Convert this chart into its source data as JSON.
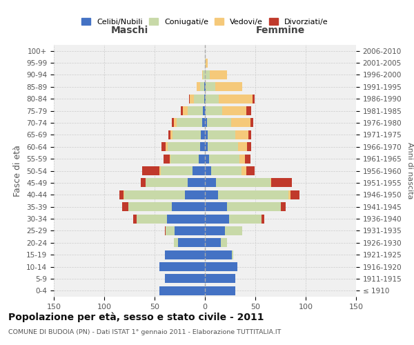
{
  "age_groups": [
    "100+",
    "95-99",
    "90-94",
    "85-89",
    "80-84",
    "75-79",
    "70-74",
    "65-69",
    "60-64",
    "55-59",
    "50-54",
    "45-49",
    "40-44",
    "35-39",
    "30-34",
    "25-29",
    "20-24",
    "15-19",
    "10-14",
    "5-9",
    "0-4"
  ],
  "birth_years": [
    "≤ 1910",
    "1911-1915",
    "1916-1920",
    "1921-1925",
    "1926-1930",
    "1931-1935",
    "1936-1940",
    "1941-1945",
    "1946-1950",
    "1951-1955",
    "1956-1960",
    "1961-1965",
    "1966-1970",
    "1971-1975",
    "1976-1980",
    "1981-1985",
    "1986-1990",
    "1991-1995",
    "1996-2000",
    "2001-2005",
    "2006-2010"
  ],
  "maschi": {
    "celibi": [
      0,
      0,
      0,
      1,
      1,
      2,
      3,
      4,
      5,
      6,
      12,
      17,
      20,
      33,
      38,
      30,
      27,
      40,
      45,
      40,
      45
    ],
    "coniugati": [
      0,
      0,
      2,
      4,
      10,
      15,
      25,
      28,
      32,
      28,
      32,
      42,
      60,
      43,
      30,
      9,
      4,
      0,
      0,
      0,
      0
    ],
    "vedovi": [
      0,
      0,
      1,
      3,
      4,
      5,
      3,
      2,
      2,
      1,
      1,
      0,
      1,
      0,
      0,
      0,
      0,
      0,
      0,
      0,
      0
    ],
    "divorziati": [
      0,
      0,
      0,
      0,
      1,
      2,
      2,
      2,
      4,
      6,
      17,
      5,
      4,
      6,
      3,
      1,
      0,
      0,
      0,
      0,
      0
    ]
  },
  "femmine": {
    "nubili": [
      0,
      0,
      0,
      1,
      1,
      1,
      2,
      3,
      3,
      4,
      6,
      11,
      13,
      22,
      24,
      20,
      16,
      27,
      32,
      30,
      30
    ],
    "coniugate": [
      0,
      1,
      5,
      9,
      13,
      16,
      24,
      27,
      30,
      30,
      30,
      54,
      70,
      53,
      32,
      17,
      6,
      1,
      0,
      0,
      0
    ],
    "vedove": [
      0,
      2,
      17,
      27,
      33,
      24,
      19,
      13,
      9,
      6,
      5,
      1,
      2,
      0,
      0,
      0,
      0,
      0,
      0,
      0,
      0
    ],
    "divorziate": [
      0,
      0,
      0,
      0,
      2,
      5,
      3,
      3,
      4,
      5,
      8,
      20,
      9,
      5,
      3,
      0,
      0,
      0,
      0,
      0,
      0
    ]
  },
  "colors": {
    "celibi": "#4472C4",
    "coniugati": "#C8D9A8",
    "vedovi": "#F5C97A",
    "divorziati": "#C0392B"
  },
  "xlim": 150,
  "title": "Popolazione per età, sesso e stato civile - 2011",
  "subtitle": "COMUNE DI BUDOIA (PN) - Dati ISTAT 1° gennaio 2011 - Elaborazione TUTTITALIA.IT",
  "xlabel_left": "Maschi",
  "xlabel_right": "Femmine",
  "ylabel": "Fasce di età",
  "ylabel_right": "Anni di nascita",
  "bg_color": "#f0f0f0",
  "grid_color": "#cccccc"
}
